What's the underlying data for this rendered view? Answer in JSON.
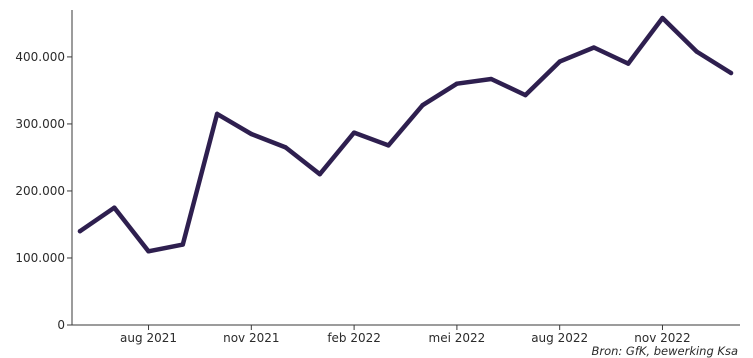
{
  "chart_data": {
    "type": "line",
    "x": [
      "jun 2021",
      "jul 2021",
      "aug 2021",
      "sep 2021",
      "okt 2021",
      "nov 2021",
      "dec 2021",
      "jan 2022",
      "feb 2022",
      "mrt 2022",
      "apr 2022",
      "mei 2022",
      "jun 2022",
      "jul 2022",
      "aug 2022",
      "sep 2022",
      "okt 2022",
      "nov 2022",
      "dec 2022",
      "jan 2023"
    ],
    "series": [
      {
        "values": [
          140000,
          175000,
          110000,
          120000,
          315000,
          285000,
          265000,
          225000,
          287000,
          268000,
          328000,
          360000,
          367000,
          343000,
          393000,
          414000,
          390000,
          458000,
          408000,
          376000
        ]
      }
    ],
    "x_ticks": [
      {
        "index": 2,
        "label": "aug 2021"
      },
      {
        "index": 5,
        "label": "nov 2021"
      },
      {
        "index": 8,
        "label": "feb 2022"
      },
      {
        "index": 11,
        "label": "mei 2022"
      },
      {
        "index": 14,
        "label": "aug 2022"
      },
      {
        "index": 17,
        "label": "nov 2022"
      }
    ],
    "y_ticks": [
      {
        "value": 0,
        "label": "0"
      },
      {
        "value": 100000,
        "label": "100.000"
      },
      {
        "value": 200000,
        "label": "200.000"
      },
      {
        "value": 300000,
        "label": "300.000"
      },
      {
        "value": 400000,
        "label": "400.000"
      }
    ],
    "ylim": [
      0,
      470000
    ],
    "line_color": "#2e1f4f",
    "grid": false,
    "source": "Bron: GfK, bewerking Ksa"
  }
}
